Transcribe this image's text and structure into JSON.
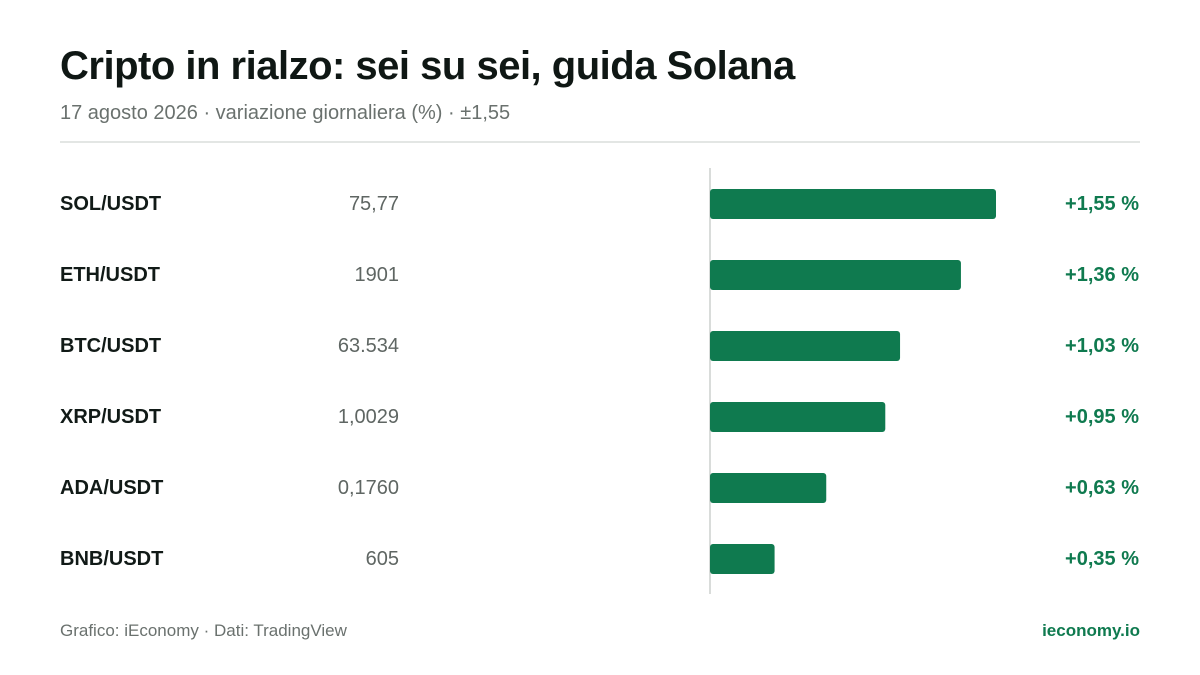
{
  "header": {
    "title": "Cripto in rialzo: sei su sei, guida Solana",
    "subtitle": "17 agosto 2026 · variazione giornaliera (%) · ±1,55"
  },
  "footer": {
    "source": "Grafico: iEconomy · Dati: TradingView",
    "brand": "ieconomy.io"
  },
  "colors": {
    "positive": "#0f7a4f",
    "label": "#111a17",
    "price": "#5f6663",
    "axis": "#d9dcda"
  },
  "chart_data": {
    "type": "bar",
    "orientation": "horizontal",
    "title": "Cripto in rialzo: sei su sei, guida Solana",
    "subtitle": "17 agosto 2026 · variazione giornaliera (%) · ±1,55",
    "xlim": [
      -1.55,
      1.55
    ],
    "grid": false,
    "rows": [
      {
        "pair": "SOL/USDT",
        "price": "75,77",
        "change": 1.55,
        "change_label": "+1,55 %"
      },
      {
        "pair": "ETH/USDT",
        "price": "1901",
        "change": 1.36,
        "change_label": "+1,36 %"
      },
      {
        "pair": "BTC/USDT",
        "price": "63.534",
        "change": 1.03,
        "change_label": "+1,03 %"
      },
      {
        "pair": "XRP/USDT",
        "price": "1,0029",
        "change": 0.95,
        "change_label": "+0,95 %"
      },
      {
        "pair": "ADA/USDT",
        "price": "0,1760",
        "change": 0.63,
        "change_label": "+0,63 %"
      },
      {
        "pair": "BNB/USDT",
        "price": "605",
        "change": 0.35,
        "change_label": "+0,35 %"
      }
    ]
  }
}
